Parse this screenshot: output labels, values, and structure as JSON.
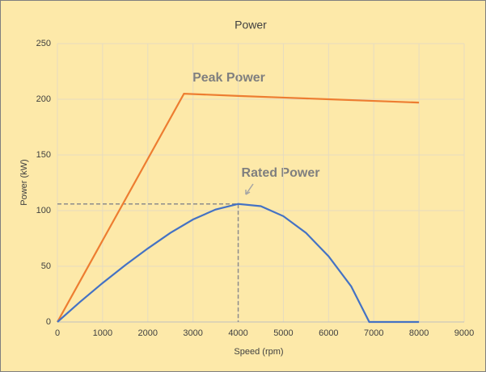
{
  "chart_data": {
    "type": "line",
    "title": "Power",
    "x_label": "Speed (rpm)",
    "y_label": "Power (kW)",
    "xlim": [
      0,
      9000
    ],
    "xticks": [
      0,
      1000,
      2000,
      3000,
      4000,
      5000,
      6000,
      7000,
      8000,
      9000
    ],
    "ylim": [
      0,
      250
    ],
    "yticks": [
      0,
      50,
      100,
      150,
      200,
      250
    ],
    "grid": true,
    "annotations": [
      "Peak Power",
      "Rated Power"
    ],
    "reference_point": {
      "x": 4000,
      "y": 106
    },
    "series": [
      {
        "name": "Peak Power",
        "color": "#ed7d31",
        "x": [
          0,
          2800,
          4000,
          5000,
          6000,
          7000,
          8000
        ],
        "values": [
          0,
          205,
          203,
          201.5,
          200,
          198.5,
          197
        ]
      },
      {
        "name": "Rated Power",
        "color": "#4472c4",
        "x": [
          0,
          500,
          1000,
          1500,
          2000,
          2500,
          3000,
          3500,
          4000,
          4500,
          5000,
          5500,
          6000,
          6500,
          6900,
          7000,
          8000
        ],
        "values": [
          0,
          18,
          35,
          51,
          66,
          80,
          92,
          101,
          106,
          104,
          95,
          80,
          59,
          32,
          0,
          0,
          0
        ]
      }
    ]
  }
}
